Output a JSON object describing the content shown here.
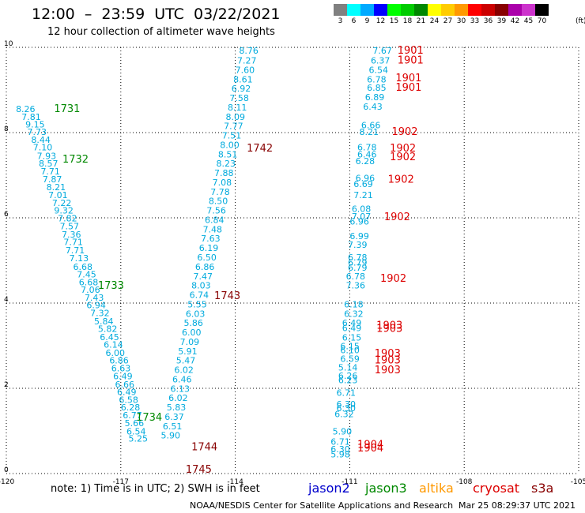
{
  "title": "12:00  –  23:59  UTC  03/22/2021",
  "subtitle": "12 hour collection of altimeter wave heights",
  "legend": {
    "unit": "(ft)",
    "bins": [
      {
        "label": "3",
        "color": "#808080"
      },
      {
        "label": "6",
        "color": "#00ffff"
      },
      {
        "label": "9",
        "color": "#00aaff"
      },
      {
        "label": "12",
        "color": "#0000ff"
      },
      {
        "label": "15",
        "color": "#00ff00"
      },
      {
        "label": "18",
        "color": "#00cc00"
      },
      {
        "label": "21",
        "color": "#008800"
      },
      {
        "label": "24",
        "color": "#ffff00"
      },
      {
        "label": "27",
        "color": "#ffcc00"
      },
      {
        "label": "30",
        "color": "#ff9900"
      },
      {
        "label": "33",
        "color": "#ff0000"
      },
      {
        "label": "36",
        "color": "#cc0000"
      },
      {
        "label": "39",
        "color": "#880000"
      },
      {
        "label": "42",
        "color": "#aa00aa"
      },
      {
        "label": "45",
        "color": "#cc33cc"
      },
      {
        "label": "70",
        "color": "#000000"
      }
    ]
  },
  "note": "note:  1) Time is in UTC;  2) SWH is in feet",
  "satellites": [
    {
      "name": "jason2",
      "color": "#0000cc"
    },
    {
      "name": "jason3",
      "color": "#008800"
    },
    {
      "name": "altika",
      "color": "#ff9900"
    },
    {
      "name": "cryosat",
      "color": "#dd0000"
    },
    {
      "name": "s3a",
      "color": "#880000"
    }
  ],
  "footer": "NOAA/NESDIS Center for Satellite Applications and Research",
  "footer_time": "Mar 25 08:29:37 UTC 2021",
  "chart_data": {
    "type": "scatter",
    "xlim": [
      -120,
      -105
    ],
    "ylim": [
      0,
      10
    ],
    "x_ticks": [
      "-120",
      "-117",
      "-114",
      "-111",
      "-108",
      "-105"
    ],
    "y_ticks": [
      "0",
      "2",
      "4",
      "6",
      "8",
      "10"
    ],
    "grid": true,
    "point_color": "#00aadd",
    "time_labels": [
      {
        "text": "1731",
        "x": -118.75,
        "y": 8.48,
        "color": "#008800"
      },
      {
        "text": "1732",
        "x": -118.53,
        "y": 7.3,
        "color": "#008800"
      },
      {
        "text": "1733",
        "x": -117.6,
        "y": 4.33,
        "color": "#008800"
      },
      {
        "text": "1734",
        "x": -116.6,
        "y": 1.24,
        "color": "#008800"
      },
      {
        "text": "1742",
        "x": -113.7,
        "y": 7.56,
        "color": "#880000"
      },
      {
        "text": "1743",
        "x": -114.55,
        "y": 4.09,
        "color": "#880000"
      },
      {
        "text": "1744",
        "x": -115.15,
        "y": 0.55,
        "color": "#880000"
      },
      {
        "text": "1745",
        "x": -115.3,
        "y": 0.02,
        "color": "#880000"
      },
      {
        "text": "1901",
        "x": -109.75,
        "y": 9.85,
        "color": "#dd0000"
      },
      {
        "text": "1901",
        "x": -109.75,
        "y": 9.62,
        "color": "#dd0000"
      },
      {
        "text": "1901",
        "x": -109.8,
        "y": 9.2,
        "color": "#dd0000"
      },
      {
        "text": "1901",
        "x": -109.8,
        "y": 8.98,
        "color": "#dd0000"
      },
      {
        "text": "1902",
        "x": -109.9,
        "y": 7.94,
        "color": "#dd0000"
      },
      {
        "text": "1902",
        "x": -109.95,
        "y": 7.56,
        "color": "#dd0000"
      },
      {
        "text": "1902",
        "x": -109.95,
        "y": 7.35,
        "color": "#dd0000"
      },
      {
        "text": "1902",
        "x": -110.0,
        "y": 6.82,
        "color": "#dd0000"
      },
      {
        "text": "1902",
        "x": -110.1,
        "y": 5.94,
        "color": "#dd0000"
      },
      {
        "text": "1902",
        "x": -110.2,
        "y": 4.5,
        "color": "#dd0000"
      },
      {
        "text": "1903",
        "x": -110.3,
        "y": 3.4,
        "color": "#dd0000"
      },
      {
        "text": "1903",
        "x": -110.3,
        "y": 3.32,
        "color": "#dd0000"
      },
      {
        "text": "1903",
        "x": -110.35,
        "y": 2.74,
        "color": "#dd0000"
      },
      {
        "text": "1903",
        "x": -110.35,
        "y": 2.58,
        "color": "#dd0000"
      },
      {
        "text": "1903",
        "x": -110.35,
        "y": 2.35,
        "color": "#dd0000"
      },
      {
        "text": "1904",
        "x": -110.8,
        "y": 0.6,
        "color": "#dd0000"
      },
      {
        "text": "1904",
        "x": -110.8,
        "y": 0.52,
        "color": "#dd0000"
      }
    ],
    "tracks": [
      {
        "color": "#00aadd",
        "points": [
          [
            -119.75,
            8.48,
            "8.26"
          ],
          [
            -119.6,
            8.3,
            "7.81"
          ],
          [
            -119.5,
            8.12,
            "9.15"
          ],
          [
            -119.45,
            7.94,
            "7.73"
          ],
          [
            -119.35,
            7.76,
            "8.44"
          ],
          [
            -119.3,
            7.58,
            "7.10"
          ],
          [
            -119.2,
            7.38,
            "7.93"
          ],
          [
            -119.15,
            7.2,
            "8.57"
          ],
          [
            -119.1,
            7.02,
            "7.71"
          ],
          [
            -119.05,
            6.83,
            "7.87"
          ],
          [
            -118.95,
            6.65,
            "8.21"
          ],
          [
            -118.9,
            6.46,
            "7.01"
          ],
          [
            -118.8,
            6.28,
            "7.22"
          ],
          [
            -118.75,
            6.1,
            "9.32"
          ],
          [
            -118.65,
            5.92,
            "7.82"
          ],
          [
            -118.6,
            5.73,
            "7.57"
          ],
          [
            -118.55,
            5.54,
            "7.36"
          ],
          [
            -118.5,
            5.36,
            "7.71"
          ],
          [
            -118.45,
            5.17,
            "7.71"
          ],
          [
            -118.35,
            4.98,
            "7.13"
          ],
          [
            -118.25,
            4.78,
            "6.68"
          ],
          [
            -118.15,
            4.6,
            "7.45"
          ],
          [
            -118.1,
            4.42,
            "6.68"
          ],
          [
            -118.05,
            4.24,
            "7.06"
          ],
          [
            -117.95,
            4.06,
            "7.43"
          ],
          [
            -117.9,
            3.88,
            "6.94"
          ],
          [
            -117.8,
            3.69,
            "7.32"
          ],
          [
            -117.7,
            3.5,
            "5.84"
          ],
          [
            -117.6,
            3.32,
            "5.82"
          ],
          [
            -117.55,
            3.13,
            "6.45"
          ],
          [
            -117.45,
            2.95,
            "6.14"
          ],
          [
            -117.4,
            2.76,
            "6.00"
          ],
          [
            -117.3,
            2.58,
            "6.86"
          ],
          [
            -117.25,
            2.4,
            "6.63"
          ],
          [
            -117.2,
            2.21,
            "6.49"
          ],
          [
            -117.15,
            2.02,
            "6.66"
          ],
          [
            -117.1,
            1.84,
            "6.49"
          ],
          [
            -117.05,
            1.66,
            "6.58"
          ],
          [
            -117.0,
            1.48,
            "6.28"
          ],
          [
            -116.95,
            1.3,
            "6.77"
          ],
          [
            -116.9,
            1.11,
            "5.66"
          ],
          [
            -116.85,
            0.92,
            "6.54"
          ],
          [
            -116.8,
            0.75,
            "5.25"
          ]
        ]
      },
      {
        "color": "#00aadd",
        "points": [
          [
            -113.9,
            9.85,
            "8.76"
          ],
          [
            -113.95,
            9.62,
            "7.27"
          ],
          [
            -114.0,
            9.4,
            "7.60"
          ],
          [
            -114.05,
            9.18,
            "8.61"
          ],
          [
            -114.1,
            8.96,
            "6.92"
          ],
          [
            -114.15,
            8.74,
            "7.58"
          ],
          [
            -114.2,
            8.52,
            "8.11"
          ],
          [
            -114.25,
            8.3,
            "8.09"
          ],
          [
            -114.3,
            8.08,
            "7.77"
          ],
          [
            -114.35,
            7.86,
            "7.51"
          ],
          [
            -114.4,
            7.64,
            "8.00"
          ],
          [
            -114.45,
            7.42,
            "8.51"
          ],
          [
            -114.5,
            7.2,
            "8.23"
          ],
          [
            -114.55,
            6.98,
            "7.88"
          ],
          [
            -114.6,
            6.76,
            "7.08"
          ],
          [
            -114.65,
            6.54,
            "7.78"
          ],
          [
            -114.7,
            6.32,
            "8.50"
          ],
          [
            -114.75,
            6.1,
            "7.56"
          ],
          [
            -114.8,
            5.88,
            "6.84"
          ],
          [
            -114.85,
            5.66,
            "7.48"
          ],
          [
            -114.9,
            5.44,
            "7.63"
          ],
          [
            -114.95,
            5.22,
            "6.19"
          ],
          [
            -115.0,
            5.0,
            "6.50"
          ],
          [
            -115.05,
            4.78,
            "6.86"
          ],
          [
            -115.1,
            4.56,
            "7.47"
          ],
          [
            -115.15,
            4.34,
            "8.03"
          ],
          [
            -115.2,
            4.12,
            "6.74"
          ],
          [
            -115.25,
            3.9,
            "5.55"
          ],
          [
            -115.3,
            3.68,
            "6.03"
          ],
          [
            -115.35,
            3.46,
            "5.86"
          ],
          [
            -115.4,
            3.24,
            "6.00"
          ],
          [
            -115.45,
            3.02,
            "7.09"
          ],
          [
            -115.5,
            2.8,
            "5.91"
          ],
          [
            -115.55,
            2.58,
            "5.47"
          ],
          [
            -115.6,
            2.36,
            "6.02"
          ],
          [
            -115.65,
            2.14,
            "6.46"
          ],
          [
            -115.7,
            1.92,
            "6.13"
          ],
          [
            -115.75,
            1.7,
            "6.02"
          ],
          [
            -115.8,
            1.48,
            "5.83"
          ],
          [
            -115.85,
            1.26,
            "6.37"
          ],
          [
            -115.9,
            1.04,
            "6.51"
          ],
          [
            -115.95,
            0.82,
            "5.90"
          ]
        ]
      },
      {
        "color": "#00aadd",
        "points": [
          [
            -110.4,
            9.85,
            "7.67"
          ],
          [
            -110.45,
            9.62,
            "6.37"
          ],
          [
            -110.5,
            9.4,
            "6.54"
          ],
          [
            -110.55,
            9.18,
            "6.78"
          ],
          [
            -110.55,
            8.98,
            "6.85"
          ],
          [
            -110.6,
            8.76,
            "6.89"
          ],
          [
            -110.65,
            8.54,
            "6.43"
          ],
          [
            -110.7,
            8.1,
            "6.66"
          ],
          [
            -110.75,
            7.94,
            "8.21"
          ],
          [
            -110.8,
            7.58,
            "6.78"
          ],
          [
            -110.8,
            7.42,
            "6.46"
          ],
          [
            -110.85,
            7.26,
            "6.28"
          ],
          [
            -110.85,
            6.86,
            "6.96"
          ],
          [
            -110.9,
            6.72,
            "6.69"
          ],
          [
            -110.9,
            6.46,
            "7.21"
          ],
          [
            -110.95,
            6.14,
            "6.08"
          ],
          [
            -110.95,
            5.96,
            "7.07"
          ],
          [
            -111.0,
            5.84,
            "6.96"
          ],
          [
            -111.0,
            5.5,
            "6.99"
          ],
          [
            -111.05,
            5.3,
            "7.39"
          ],
          [
            -111.05,
            5.0,
            "6.78"
          ],
          [
            -111.05,
            4.88,
            "6.79"
          ],
          [
            -111.05,
            4.76,
            "6.79"
          ],
          [
            -111.1,
            4.56,
            "6.78"
          ],
          [
            -111.1,
            4.34,
            "7.36"
          ],
          [
            -111.15,
            3.9,
            "6.18"
          ],
          [
            -111.15,
            3.68,
            "6.32"
          ],
          [
            -111.2,
            3.46,
            "6.49"
          ],
          [
            -111.2,
            3.34,
            "6.49"
          ],
          [
            -111.2,
            3.12,
            "6.15"
          ],
          [
            -111.25,
            2.92,
            "6.15"
          ],
          [
            -111.25,
            2.82,
            "6.10"
          ],
          [
            -111.25,
            2.62,
            "6.59"
          ],
          [
            -111.3,
            2.42,
            "5.14"
          ],
          [
            -111.3,
            2.22,
            "6.26"
          ],
          [
            -111.3,
            2.12,
            "6.23"
          ],
          [
            -111.35,
            1.82,
            "6.71"
          ],
          [
            -111.35,
            1.56,
            "6.30"
          ],
          [
            -111.35,
            1.46,
            "6.30"
          ],
          [
            -111.4,
            1.32,
            "6.32"
          ],
          [
            -111.45,
            0.92,
            "5.90"
          ],
          [
            -111.5,
            0.68,
            "6.71"
          ],
          [
            -111.5,
            0.5,
            "6.30"
          ],
          [
            -111.5,
            0.38,
            "5.98"
          ]
        ]
      }
    ]
  }
}
